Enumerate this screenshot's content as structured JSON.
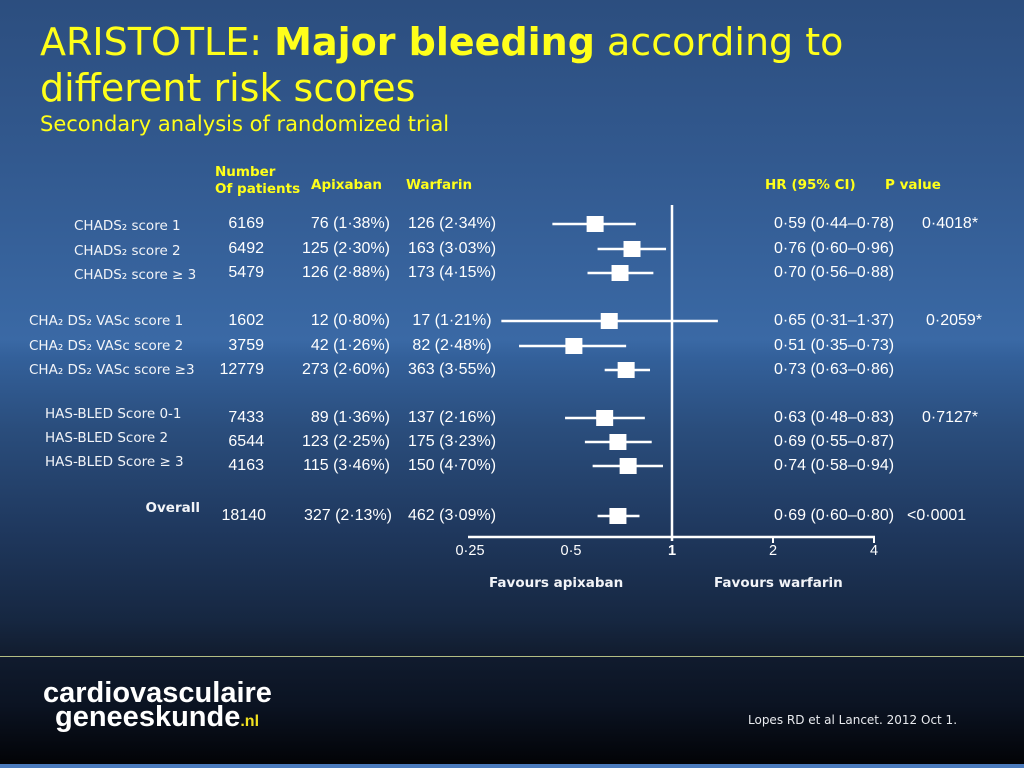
{
  "title": {
    "part1": "ARISTOTLE: ",
    "bold": "Major bleeding",
    "part2": " according to",
    "line2": "different risk scores",
    "subtitle": "Secondary analysis of randomized trial"
  },
  "headers": {
    "patients_line1": "Number",
    "patients_line2": "Of patients",
    "apixaban": "Apixaban",
    "warfarin": "Warfarin",
    "hr": "HR (95% CI)",
    "p": "P value"
  },
  "rows": [
    {
      "label": "CHADS₂ score 1",
      "patients": "6169",
      "apixaban": "76 (1·38%)",
      "warfarin": "126 (2·34%)",
      "hr_ci": "0·59 (0·44–0·78)",
      "p_value": "0·4018*"
    },
    {
      "label": "CHADS₂ score 2",
      "patients": "6492",
      "apixaban": "125 (2·30%)",
      "warfarin": "163 (3·03%)",
      "hr_ci": "0·76 (0·60–0·96)",
      "p_value": ""
    },
    {
      "label": "CHADS₂ score ≥ 3",
      "patients": "5479",
      "apixaban": "126 (2·88%)",
      "warfarin": "173 (4·15%)",
      "hr_ci": "0·70 (0·56–0·88)",
      "p_value": ""
    },
    {
      "label": "CHA₂ DS₂ VASc score 1",
      "patients": "1602",
      "apixaban": "12 (0·80%)",
      "warfarin": "17 (1·21%)",
      "hr_ci": "0·65 (0·31–1·37)",
      "p_value": "0·2059*"
    },
    {
      "label": "CHA₂ DS₂ VASc score 2",
      "patients": "3759",
      "apixaban": "42 (1·26%)",
      "warfarin": "82 (2·48%)",
      "hr_ci": "0·51 (0·35–0·73)",
      "p_value": ""
    },
    {
      "label": "CHA₂ DS₂ VASc score ≥3",
      "patients": "12779",
      "apixaban": "273 (2·60%)",
      "warfarin": "363 (3·55%)",
      "hr_ci": "0·73 (0·63–0·86)",
      "p_value": ""
    },
    {
      "label": "HAS-BLED Score 0-1",
      "patients": "7433",
      "apixaban": "89 (1·36%)",
      "warfarin": "137 (2·16%)",
      "hr_ci": "0·63 (0·48–0·83)",
      "p_value": "0·7127*"
    },
    {
      "label": "HAS-BLED Score 2",
      "patients": "6544",
      "apixaban": "123 (2·25%)",
      "warfarin": "175 (3·23%)",
      "hr_ci": "0·69 (0·55–0·87)",
      "p_value": ""
    },
    {
      "label": "HAS-BLED Score ≥ 3",
      "patients": "4163",
      "apixaban": "115 (3·46%)",
      "warfarin": "150 (4·70%)",
      "hr_ci": "0·74 (0·58–0·94)",
      "p_value": ""
    },
    {
      "label": "Overall",
      "patients": "18140",
      "apixaban": "327 (2·13%)",
      "warfarin": "462 (3·09%)",
      "hr_ci": "0·69 (0·60–0·80)",
      "p_value": "<0·0001"
    }
  ],
  "footer": {
    "logo_line1": "cardiovasculaire",
    "logo_line2": "geneeskunde",
    "logo_suffix": ".nl",
    "citation": "Lopes RD et al Lancet. 2012 Oct 1."
  },
  "colors": {
    "title": "#ffff1a",
    "marks": "#ffffff",
    "background_top": "#2c4e7f",
    "background_mid": "#3a69a5",
    "footer": "#0b1322",
    "footer_rule": "#b3be84"
  },
  "chart_data": {
    "type": "scatter",
    "plot_style": "forest",
    "title": "ARISTOTLE: Major bleeding according to different risk scores",
    "categories": [
      "CHADS₂ score 1",
      "CHADS₂ score 2",
      "CHADS₂ score ≥ 3",
      "CHA₂ DS₂ VASc score 1",
      "CHA₂ DS₂ VASc score 2",
      "CHA₂ DS₂ VASc score ≥3",
      "HAS-BLED Score 0-1",
      "HAS-BLED Score 2",
      "HAS-BLED Score ≥ 3",
      "Overall"
    ],
    "series": [
      {
        "name": "HR (95% CI)",
        "values": [
          0.59,
          0.76,
          0.7,
          0.65,
          0.51,
          0.73,
          0.63,
          0.69,
          0.74,
          0.69
        ],
        "ci_low": [
          0.44,
          0.6,
          0.56,
          0.31,
          0.35,
          0.63,
          0.48,
          0.55,
          0.58,
          0.6
        ],
        "ci_high": [
          0.78,
          0.96,
          0.88,
          1.37,
          0.73,
          0.86,
          0.83,
          0.87,
          0.94,
          0.8
        ]
      }
    ],
    "xscale": "log",
    "xlim": [
      0.25,
      4
    ],
    "xticks": [
      0.25,
      0.5,
      1,
      2,
      4
    ],
    "xtick_labels": [
      "0·25",
      "0·5",
      "1",
      "2",
      "4"
    ],
    "reference_line": 1,
    "xlabel_left": "Favours apixaban",
    "xlabel_right": "Favours warfarin",
    "grid": false
  }
}
